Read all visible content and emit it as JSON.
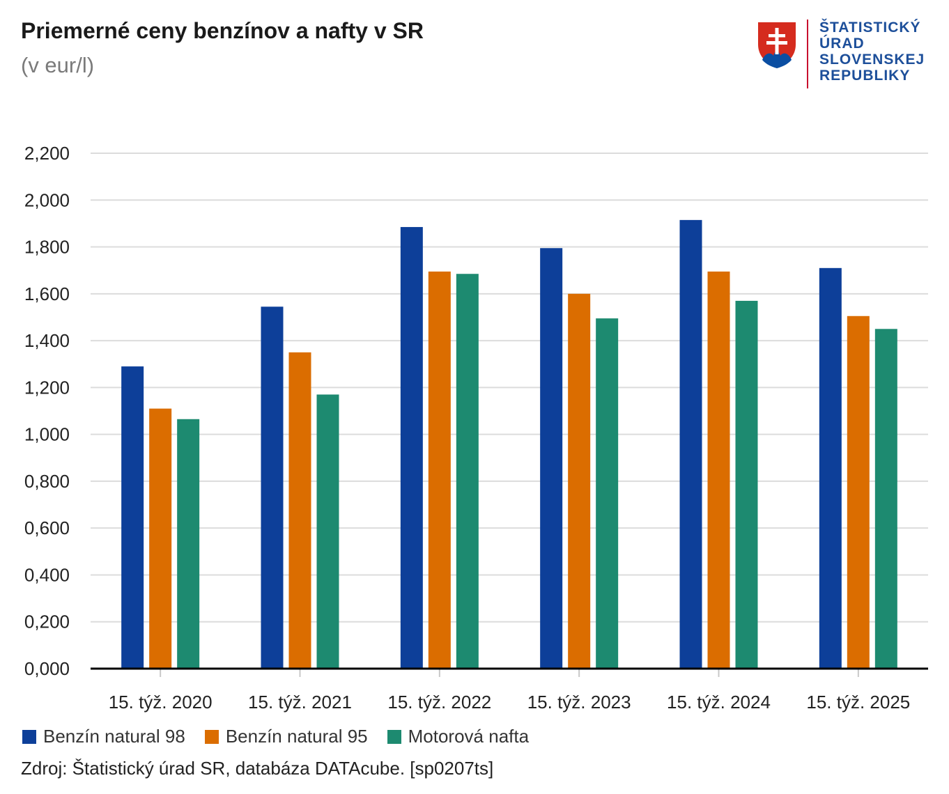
{
  "header": {
    "title": "Priemerné ceny benzínov a nafty v SR",
    "subtitle": "(v eur/l)"
  },
  "logo": {
    "lines": [
      "ŠTATISTICKÝ",
      "ÚRAD",
      "SLOVENSKEJ",
      "REPUBLIKY"
    ]
  },
  "colors": {
    "series": [
      "#0d3f99",
      "#db6d00",
      "#1d8a70"
    ],
    "grid": "#dcdcdc",
    "axis": "#000000",
    "logo_text": "#1d4f9a",
    "logo_line": "#c8102e"
  },
  "chart_data": {
    "type": "bar",
    "title": "Priemerné ceny benzínov a nafty v SR",
    "subtitle": "(v eur/l)",
    "xlabel": "",
    "ylabel": "",
    "ylim": [
      0,
      2.2
    ],
    "grid": true,
    "legend_position": "bottom-left",
    "y_ticks": [
      "0,000",
      "0,200",
      "0,400",
      "0,600",
      "0,800",
      "1,000",
      "1,200",
      "1,400",
      "1,600",
      "1,800",
      "2,000",
      "2,200"
    ],
    "categories": [
      "15. týž. 2020",
      "15. týž. 2021",
      "15. týž. 2022",
      "15. týž. 2023",
      "15. týž. 2024",
      "15. týž. 2025"
    ],
    "series": [
      {
        "name": "Benzín natural 98",
        "values": [
          1.29,
          1.545,
          1.885,
          1.795,
          1.915,
          1.71
        ]
      },
      {
        "name": "Benzín natural 95",
        "values": [
          1.11,
          1.35,
          1.695,
          1.6,
          1.695,
          1.505
        ]
      },
      {
        "name": "Motorová nafta",
        "values": [
          1.065,
          1.17,
          1.685,
          1.495,
          1.57,
          1.45
        ]
      }
    ]
  },
  "source": "Zdroj: Štatistický úrad SR, databáza DATAcube. [sp0207ts]"
}
